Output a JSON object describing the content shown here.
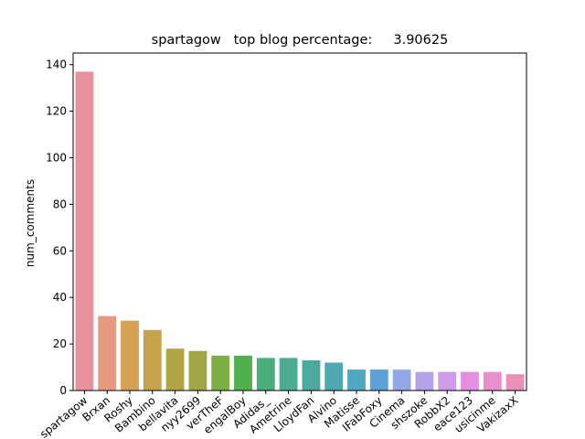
{
  "chart_data": {
    "type": "bar",
    "title": "spartagow   top blog percentage:     3.90625",
    "xlabel": "",
    "ylabel": "num_comments",
    "ylim": [
      0,
      145
    ],
    "yticks": [
      0,
      20,
      40,
      60,
      80,
      100,
      120,
      140
    ],
    "grid": false,
    "categories": [
      "spartagow",
      "Brxan",
      "Roshy",
      "Bambino",
      "bellavita",
      "nyy2699",
      "verTheF",
      "engalBoy",
      "Adidas_",
      "Ametrine",
      "LloydFan",
      "Alvino",
      "Matisse",
      "IFabFoxy",
      "Cinema",
      "shszoke",
      "RobbX2",
      "eace123",
      "usicinme",
      "VakizaxX"
    ],
    "values": [
      137,
      32,
      30,
      26,
      18,
      17,
      15,
      15,
      14,
      14,
      13,
      12,
      9,
      9,
      9,
      8,
      8,
      8,
      8,
      7
    ],
    "colors": [
      "#e8919d",
      "#e69a80",
      "#d99f55",
      "#c5a24b",
      "#b0a445",
      "#9fa644",
      "#7fae45",
      "#4fb04d",
      "#4aae7a",
      "#4bab92",
      "#4ca9a2",
      "#4fa8b2",
      "#52a6c1",
      "#5aa2d5",
      "#93a8e8",
      "#b3a3ea",
      "#cd9bea",
      "#e38fe2",
      "#e98fcc",
      "#e890b7"
    ]
  }
}
